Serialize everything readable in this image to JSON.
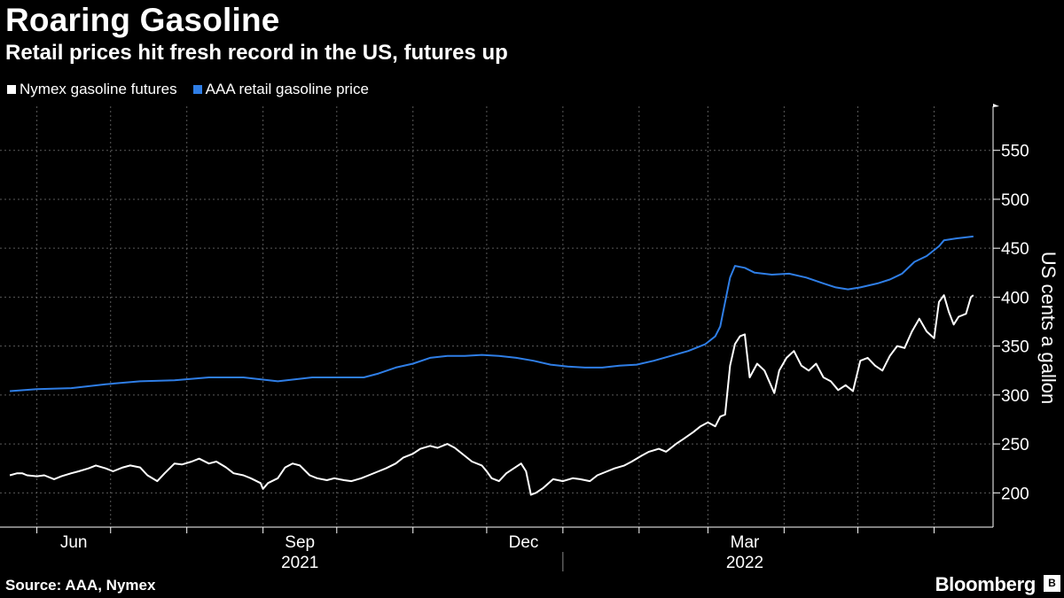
{
  "title": "Roaring Gasoline",
  "subtitle": "Retail prices hit fresh record in the US, futures up",
  "source": "Source: AAA, Nymex",
  "brand": "Bloomberg",
  "colors": {
    "background": "#000000",
    "futures": "#ffffff",
    "retail": "#2f7ee6",
    "grid": "#5a5a5a"
  },
  "chart_data": {
    "type": "line",
    "ylabel": "US cents a gallon",
    "ylim": [
      165,
      595
    ],
    "yticks": [
      200,
      250,
      300,
      350,
      400,
      450,
      500,
      550
    ],
    "x_tick_labels": [
      "Jun",
      "Sep",
      "Dec",
      "Mar"
    ],
    "x_year_labels": [
      "2021",
      "2022"
    ],
    "legend_position": "top-left",
    "grid": true,
    "series": [
      {
        "name": "Nymex gasoline futures",
        "color": "#ffffff",
        "points": [
          [
            "2021-05-21",
            218
          ],
          [
            "2021-05-24",
            220
          ],
          [
            "2021-05-26",
            220
          ],
          [
            "2021-05-28",
            218
          ],
          [
            "2021-06-01",
            217
          ],
          [
            "2021-06-04",
            218
          ],
          [
            "2021-06-08",
            214
          ],
          [
            "2021-06-11",
            217
          ],
          [
            "2021-06-15",
            220
          ],
          [
            "2021-06-18",
            222
          ],
          [
            "2021-06-22",
            225
          ],
          [
            "2021-06-25",
            228
          ],
          [
            "2021-06-29",
            225
          ],
          [
            "2021-07-02",
            222
          ],
          [
            "2021-07-06",
            226
          ],
          [
            "2021-07-09",
            228
          ],
          [
            "2021-07-13",
            226
          ],
          [
            "2021-07-16",
            218
          ],
          [
            "2021-07-20",
            212
          ],
          [
            "2021-07-23",
            220
          ],
          [
            "2021-07-27",
            230
          ],
          [
            "2021-07-30",
            229
          ],
          [
            "2021-08-03",
            232
          ],
          [
            "2021-08-06",
            235
          ],
          [
            "2021-08-10",
            230
          ],
          [
            "2021-08-13",
            232
          ],
          [
            "2021-08-17",
            226
          ],
          [
            "2021-08-20",
            220
          ],
          [
            "2021-08-24",
            218
          ],
          [
            "2021-08-27",
            215
          ],
          [
            "2021-08-31",
            210
          ],
          [
            "2021-09-01",
            204
          ],
          [
            "2021-09-03",
            210
          ],
          [
            "2021-09-07",
            215
          ],
          [
            "2021-09-10",
            226
          ],
          [
            "2021-09-13",
            230
          ],
          [
            "2021-09-16",
            228
          ],
          [
            "2021-09-20",
            218
          ],
          [
            "2021-09-23",
            215
          ],
          [
            "2021-09-27",
            213
          ],
          [
            "2021-09-30",
            215
          ],
          [
            "2021-10-04",
            213
          ],
          [
            "2021-10-07",
            212
          ],
          [
            "2021-10-11",
            215
          ],
          [
            "2021-10-14",
            218
          ],
          [
            "2021-10-18",
            222
          ],
          [
            "2021-10-21",
            225
          ],
          [
            "2021-10-25",
            230
          ],
          [
            "2021-10-28",
            236
          ],
          [
            "2021-11-01",
            240
          ],
          [
            "2021-11-04",
            245
          ],
          [
            "2021-11-08",
            248
          ],
          [
            "2021-11-11",
            246
          ],
          [
            "2021-11-15",
            250
          ],
          [
            "2021-11-18",
            246
          ],
          [
            "2021-11-22",
            238
          ],
          [
            "2021-11-25",
            232
          ],
          [
            "2021-11-29",
            228
          ],
          [
            "2021-12-01",
            222
          ],
          [
            "2021-12-03",
            215
          ],
          [
            "2021-12-06",
            212
          ],
          [
            "2021-12-09",
            220
          ],
          [
            "2021-12-12",
            225
          ],
          [
            "2021-12-15",
            230
          ],
          [
            "2021-12-17",
            222
          ],
          [
            "2021-12-19",
            198
          ],
          [
            "2021-12-21",
            200
          ],
          [
            "2021-12-24",
            205
          ],
          [
            "2021-12-28",
            214
          ],
          [
            "2022-01-01",
            212
          ],
          [
            "2022-01-05",
            215
          ],
          [
            "2022-01-08",
            214
          ],
          [
            "2022-01-12",
            212
          ],
          [
            "2022-01-15",
            218
          ],
          [
            "2022-01-19",
            222
          ],
          [
            "2022-01-22",
            225
          ],
          [
            "2022-01-26",
            228
          ],
          [
            "2022-01-29",
            232
          ],
          [
            "2022-02-02",
            238
          ],
          [
            "2022-02-05",
            242
          ],
          [
            "2022-02-09",
            245
          ],
          [
            "2022-02-12",
            242
          ],
          [
            "2022-02-16",
            250
          ],
          [
            "2022-02-19",
            255
          ],
          [
            "2022-02-23",
            262
          ],
          [
            "2022-02-26",
            268
          ],
          [
            "2022-03-01",
            272
          ],
          [
            "2022-03-04",
            268
          ],
          [
            "2022-03-06",
            278
          ],
          [
            "2022-03-08",
            280
          ],
          [
            "2022-03-10",
            330
          ],
          [
            "2022-03-12",
            352
          ],
          [
            "2022-03-14",
            360
          ],
          [
            "2022-03-16",
            362
          ],
          [
            "2022-03-18",
            318
          ],
          [
            "2022-03-21",
            332
          ],
          [
            "2022-03-24",
            325
          ],
          [
            "2022-03-28",
            302
          ],
          [
            "2022-03-30",
            325
          ],
          [
            "2022-04-02",
            338
          ],
          [
            "2022-04-05",
            345
          ],
          [
            "2022-04-08",
            330
          ],
          [
            "2022-04-11",
            325
          ],
          [
            "2022-04-14",
            332
          ],
          [
            "2022-04-17",
            318
          ],
          [
            "2022-04-20",
            314
          ],
          [
            "2022-04-23",
            305
          ],
          [
            "2022-04-26",
            310
          ],
          [
            "2022-04-29",
            304
          ],
          [
            "2022-05-02",
            335
          ],
          [
            "2022-05-05",
            338
          ],
          [
            "2022-05-08",
            330
          ],
          [
            "2022-05-11",
            325
          ],
          [
            "2022-05-14",
            340
          ],
          [
            "2022-05-17",
            350
          ],
          [
            "2022-05-20",
            348
          ],
          [
            "2022-05-23",
            365
          ],
          [
            "2022-05-26",
            378
          ],
          [
            "2022-05-29",
            365
          ],
          [
            "2022-06-01",
            358
          ],
          [
            "2022-06-03",
            395
          ],
          [
            "2022-06-05",
            402
          ],
          [
            "2022-06-07",
            385
          ],
          [
            "2022-06-09",
            372
          ],
          [
            "2022-06-11",
            380
          ],
          [
            "2022-06-14",
            383
          ],
          [
            "2022-06-16",
            400
          ],
          [
            "2022-06-17",
            402
          ]
        ]
      },
      {
        "name": "AAA retail gasoline price",
        "color": "#2f7ee6",
        "points": [
          [
            "2021-05-21",
            304
          ],
          [
            "2021-06-01",
            306
          ],
          [
            "2021-06-15",
            307
          ],
          [
            "2021-06-29",
            311
          ],
          [
            "2021-07-13",
            314
          ],
          [
            "2021-07-27",
            315
          ],
          [
            "2021-08-10",
            318
          ],
          [
            "2021-08-24",
            318
          ],
          [
            "2021-09-07",
            314
          ],
          [
            "2021-09-21",
            318
          ],
          [
            "2021-10-05",
            318
          ],
          [
            "2021-10-12",
            318
          ],
          [
            "2021-10-18",
            322
          ],
          [
            "2021-10-25",
            328
          ],
          [
            "2021-11-01",
            332
          ],
          [
            "2021-11-08",
            338
          ],
          [
            "2021-11-15",
            340
          ],
          [
            "2021-11-22",
            340
          ],
          [
            "2021-11-29",
            341
          ],
          [
            "2021-12-06",
            340
          ],
          [
            "2021-12-13",
            338
          ],
          [
            "2021-12-20",
            335
          ],
          [
            "2021-12-27",
            331
          ],
          [
            "2022-01-03",
            329
          ],
          [
            "2022-01-10",
            328
          ],
          [
            "2022-01-17",
            328
          ],
          [
            "2022-01-24",
            330
          ],
          [
            "2022-01-31",
            331
          ],
          [
            "2022-02-07",
            335
          ],
          [
            "2022-02-14",
            340
          ],
          [
            "2022-02-21",
            345
          ],
          [
            "2022-02-28",
            352
          ],
          [
            "2022-03-04",
            360
          ],
          [
            "2022-03-06",
            370
          ],
          [
            "2022-03-08",
            395
          ],
          [
            "2022-03-10",
            420
          ],
          [
            "2022-03-12",
            432
          ],
          [
            "2022-03-16",
            430
          ],
          [
            "2022-03-20",
            425
          ],
          [
            "2022-03-27",
            423
          ],
          [
            "2022-04-03",
            424
          ],
          [
            "2022-04-10",
            420
          ],
          [
            "2022-04-17",
            414
          ],
          [
            "2022-04-22",
            410
          ],
          [
            "2022-04-27",
            408
          ],
          [
            "2022-05-02",
            410
          ],
          [
            "2022-05-09",
            414
          ],
          [
            "2022-05-14",
            418
          ],
          [
            "2022-05-19",
            424
          ],
          [
            "2022-05-24",
            436
          ],
          [
            "2022-05-29",
            442
          ],
          [
            "2022-06-03",
            452
          ],
          [
            "2022-06-05",
            458
          ],
          [
            "2022-06-10",
            460
          ],
          [
            "2022-06-17",
            462
          ]
        ]
      }
    ]
  }
}
